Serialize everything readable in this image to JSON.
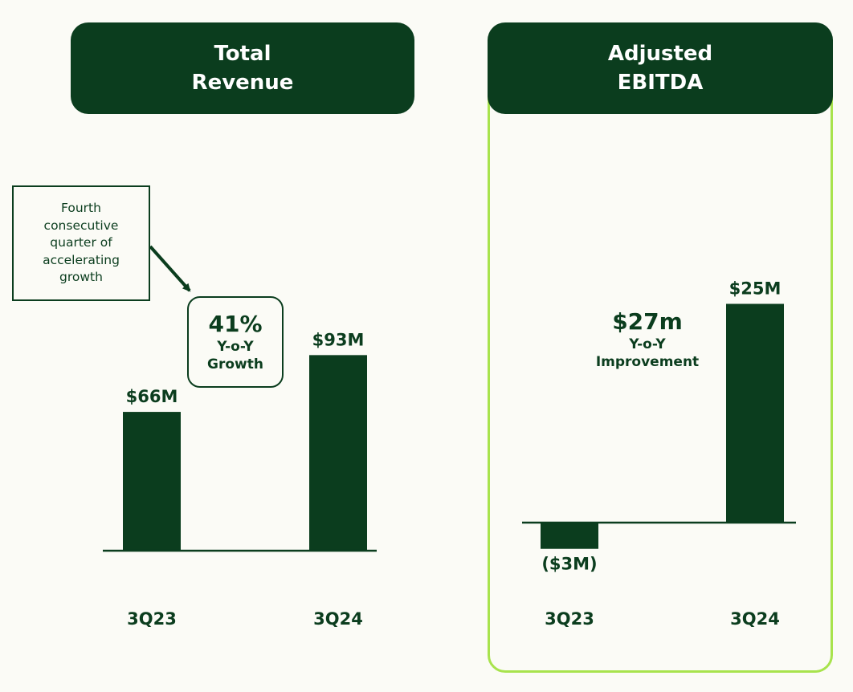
{
  "headers": {
    "revenue": [
      "Total",
      "Revenue"
    ],
    "ebitda": [
      "Adjusted",
      "EBITDA"
    ]
  },
  "callout": {
    "lines": [
      "Fourth",
      "consecutive",
      "quarter of",
      "accelerating",
      "growth"
    ]
  },
  "growth_badge": {
    "value": "41%",
    "lines": [
      "Y-o-Y",
      "Growth"
    ]
  },
  "improvement": {
    "value": "$27m",
    "lines": [
      "Y-o-Y",
      "Improvement"
    ]
  },
  "colors": {
    "bar": "#0b3d1e",
    "frame": "#a8e34d",
    "background": "#fbfbf6"
  },
  "chart_data": [
    {
      "type": "bar",
      "title": "Total Revenue",
      "unit": "$M",
      "categories": [
        "3Q23",
        "3Q24"
      ],
      "values": [
        66,
        93
      ],
      "labels": [
        "$66M",
        "$93M"
      ]
    },
    {
      "type": "bar",
      "title": "Adjusted EBITDA",
      "unit": "$M",
      "categories": [
        "3Q23",
        "3Q24"
      ],
      "values": [
        -3,
        25
      ],
      "labels": [
        "($3M)",
        "$25M"
      ]
    }
  ]
}
